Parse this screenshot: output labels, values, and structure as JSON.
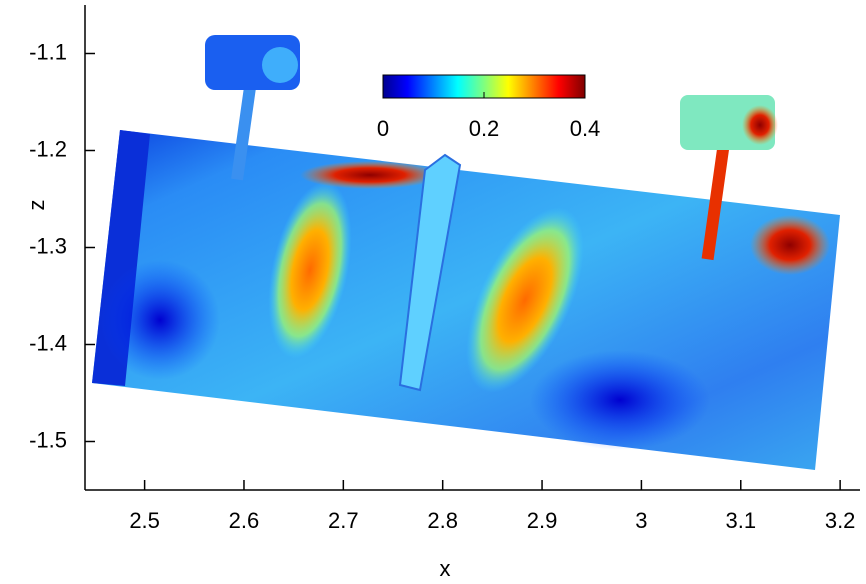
{
  "chart_data": {
    "type": "heatmap",
    "x_label": "x",
    "y_label": "z",
    "xlim": [
      2.44,
      3.22
    ],
    "ylim": [
      -1.55,
      -1.05
    ],
    "xticks": [
      2.5,
      2.6,
      2.7,
      2.8,
      2.9,
      3,
      3.1,
      3.2
    ],
    "yticks": [
      -1.1,
      -1.2,
      -1.3,
      -1.4,
      -1.5
    ],
    "colorbar": {
      "colormap": "jet",
      "lim": [
        0,
        0.4
      ],
      "ticks": [
        0,
        0.2,
        0.4
      ]
    }
  }
}
